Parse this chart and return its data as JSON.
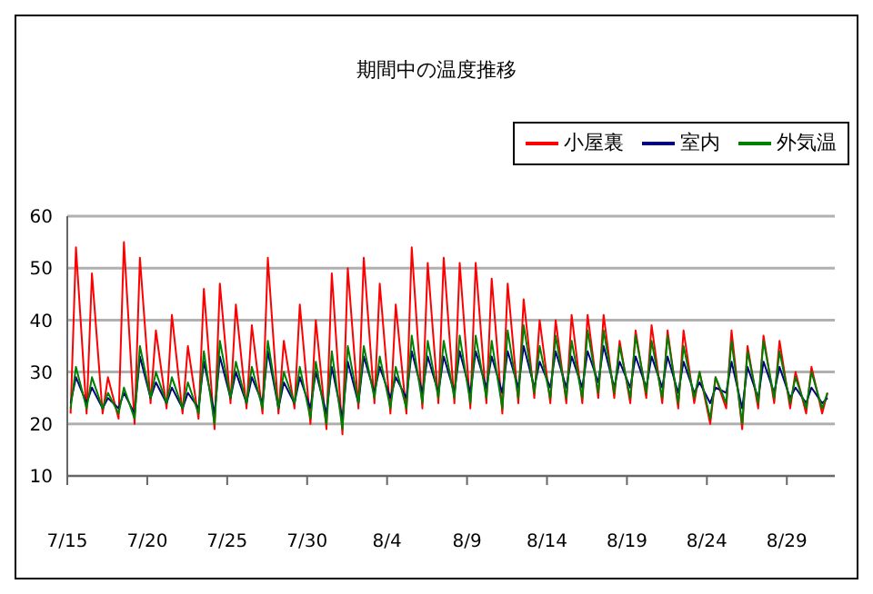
{
  "chart_data": {
    "type": "line",
    "title": "期間中の温度推移",
    "x": [
      "--07-15T05:00",
      "--07-15T13:00",
      "--07-16T05:00",
      "--07-16T13:00",
      "--07-17T05:00",
      "--07-17T13:00",
      "--07-18T05:00",
      "--07-18T13:00",
      "--07-19T05:00",
      "--07-19T13:00",
      "--07-20T05:00",
      "--07-20T13:00",
      "--07-21T05:00",
      "--07-21T13:00",
      "--07-22T05:00",
      "--07-22T13:00",
      "--07-23T05:00",
      "--07-23T13:00",
      "--07-24T05:00",
      "--07-24T13:00",
      "--07-25T05:00",
      "--07-25T13:00",
      "--07-26T05:00",
      "--07-26T13:00",
      "--07-27T05:00",
      "--07-27T13:00",
      "--07-28T05:00",
      "--07-28T13:00",
      "--07-29T05:00",
      "--07-29T13:00",
      "--07-30T05:00",
      "--07-30T13:00",
      "--07-31T05:00",
      "--07-31T13:00",
      "--08-01T05:00",
      "--08-01T13:00",
      "--08-02T05:00",
      "--08-02T13:00",
      "--08-03T05:00",
      "--08-03T13:00",
      "--08-04T05:00",
      "--08-04T13:00",
      "--08-05T05:00",
      "--08-05T13:00",
      "--08-06T05:00",
      "--08-06T13:00",
      "--08-07T05:00",
      "--08-07T13:00",
      "--08-08T05:00",
      "--08-08T13:00",
      "--08-09T05:00",
      "--08-09T13:00",
      "--08-10T05:00",
      "--08-10T13:00",
      "--08-11T05:00",
      "--08-11T13:00",
      "--08-12T05:00",
      "--08-12T13:00",
      "--08-13T05:00",
      "--08-13T13:00",
      "--08-14T05:00",
      "--08-14T13:00",
      "--08-15T05:00",
      "--08-15T13:00",
      "--08-16T05:00",
      "--08-16T13:00",
      "--08-17T05:00",
      "--08-17T13:00",
      "--08-18T05:00",
      "--08-18T13:00",
      "--08-19T05:00",
      "--08-19T13:00",
      "--08-20T05:00",
      "--08-20T13:00",
      "--08-21T05:00",
      "--08-21T13:00",
      "--08-22T05:00",
      "--08-22T13:00",
      "--08-23T05:00",
      "--08-23T13:00",
      "--08-24T05:00",
      "--08-24T13:00",
      "--08-25T05:00",
      "--08-25T13:00",
      "--08-26T05:00",
      "--08-26T13:00",
      "--08-27T05:00",
      "--08-27T13:00",
      "--08-28T05:00",
      "--08-28T13:00",
      "--08-29T05:00",
      "--08-29T13:00",
      "--08-30T05:00",
      "--08-30T13:00",
      "--08-31T05:00",
      "--08-31T13:00"
    ],
    "series": [
      {
        "name": "小屋裏",
        "color": "#ff0000",
        "values": [
          22,
          54,
          22,
          49,
          22,
          29,
          21,
          55,
          20,
          52,
          24,
          38,
          23,
          41,
          22,
          35,
          21,
          46,
          19,
          47,
          24,
          43,
          23,
          39,
          22,
          52,
          22,
          36,
          23,
          43,
          20,
          40,
          19,
          49,
          18,
          50,
          23,
          52,
          24,
          47,
          22,
          43,
          22,
          54,
          23,
          51,
          24,
          52,
          24,
          51,
          23,
          51,
          24,
          48,
          22,
          47,
          24,
          44,
          25,
          40,
          24,
          40,
          24,
          41,
          24,
          41,
          25,
          41,
          25,
          36,
          24,
          38,
          25,
          39,
          24,
          38,
          23,
          38,
          24,
          30,
          20,
          29,
          23,
          38,
          19,
          35,
          23,
          37,
          24,
          36,
          23,
          30,
          22,
          31,
          22,
          26
        ]
      },
      {
        "name": "室内",
        "color": "#000080",
        "values": [
          24,
          29,
          24,
          27,
          23,
          25,
          23,
          26,
          22,
          33,
          25,
          28,
          24,
          27,
          23,
          26,
          23,
          32,
          22,
          33,
          25,
          30,
          24,
          29,
          24,
          34,
          23,
          28,
          24,
          29,
          23,
          30,
          22,
          31,
          21,
          32,
          24,
          33,
          26,
          31,
          25,
          29,
          25,
          34,
          26,
          33,
          26,
          33,
          26,
          34,
          26,
          34,
          27,
          33,
          26,
          34,
          27,
          35,
          27,
          32,
          27,
          34,
          27,
          33,
          27,
          34,
          28,
          35,
          27,
          32,
          27,
          33,
          27,
          33,
          27,
          33,
          26,
          32,
          26,
          28,
          24,
          27,
          26,
          32,
          23,
          31,
          25,
          32,
          26,
          31,
          25,
          27,
          24,
          27,
          24,
          25
        ]
      },
      {
        "name": "外気温",
        "color": "#008000",
        "values": [
          23,
          31,
          23,
          29,
          23,
          26,
          22,
          27,
          21,
          35,
          25,
          30,
          24,
          29,
          23,
          28,
          22,
          34,
          20,
          36,
          25,
          32,
          24,
          31,
          23,
          36,
          23,
          30,
          24,
          31,
          21,
          32,
          20,
          34,
          19,
          35,
          24,
          35,
          25,
          33,
          23,
          31,
          23,
          37,
          24,
          36,
          25,
          36,
          25,
          37,
          24,
          37,
          25,
          36,
          23,
          38,
          25,
          39,
          26,
          35,
          25,
          37,
          25,
          36,
          25,
          38,
          26,
          38,
          26,
          35,
          25,
          37,
          26,
          36,
          25,
          37,
          24,
          35,
          25,
          30,
          21,
          29,
          24,
          36,
          20,
          34,
          24,
          36,
          25,
          34,
          24,
          29,
          23,
          30,
          23,
          26
        ]
      }
    ],
    "xlim": [
      "--07-15",
      "--09-01"
    ],
    "xticks": [
      {
        "value": "--07-15",
        "label": "7/15"
      },
      {
        "value": "--07-20",
        "label": "7/20"
      },
      {
        "value": "--07-25",
        "label": "7/25"
      },
      {
        "value": "--07-30",
        "label": "7/30"
      },
      {
        "value": "--08-04",
        "label": "8/4"
      },
      {
        "value": "--08-09",
        "label": "8/9"
      },
      {
        "value": "--08-14",
        "label": "8/14"
      },
      {
        "value": "--08-19",
        "label": "8/19"
      },
      {
        "value": "--08-24",
        "label": "8/24"
      },
      {
        "value": "--08-29",
        "label": "8/29"
      }
    ],
    "ylim": [
      10,
      60
    ],
    "yticks": [
      10,
      20,
      30,
      40,
      50,
      60
    ],
    "grid": "y",
    "legend": "top right"
  }
}
